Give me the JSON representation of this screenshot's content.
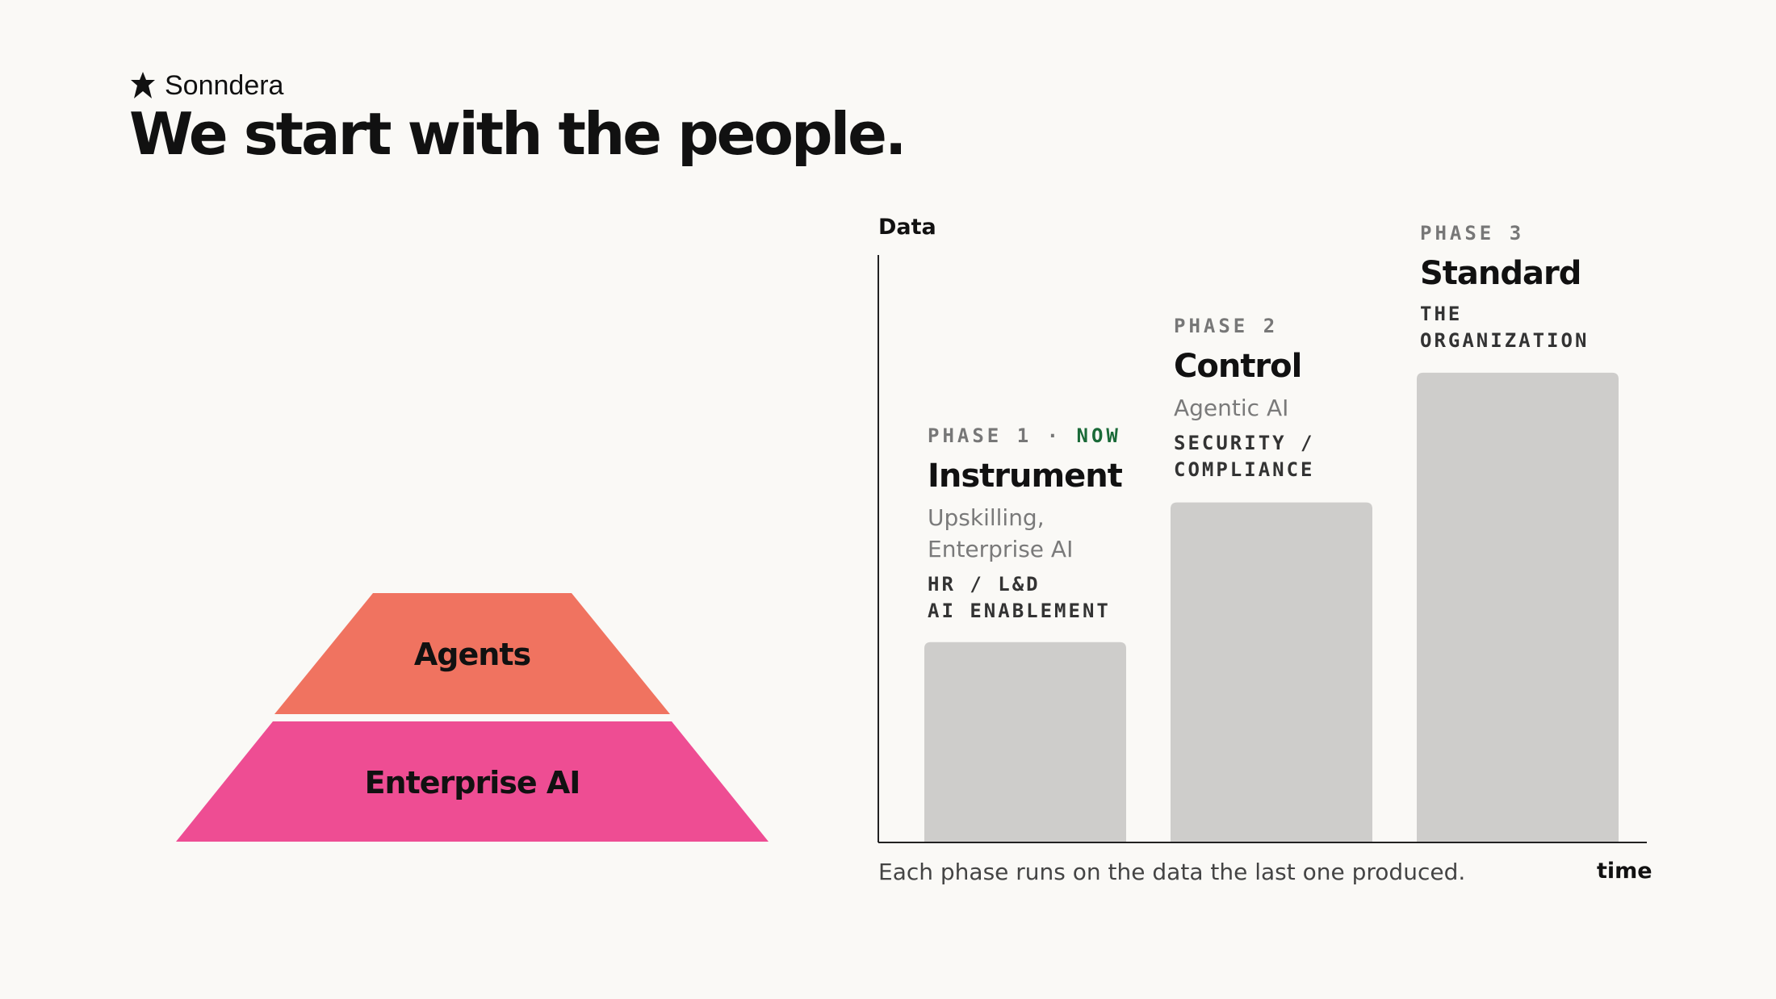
{
  "brand": {
    "name": "Sonndera",
    "icon": "asterisk-figure-icon"
  },
  "title": "We start with the people.",
  "pyramid": {
    "layers": [
      {
        "label": "Agents",
        "color": "#f07360"
      },
      {
        "label": "Enterprise AI",
        "color": "#ee4d93"
      }
    ]
  },
  "chart": {
    "y_axis_label": "Data",
    "x_axis_label": "time",
    "caption": "Each phase runs on the data the last one produced.",
    "bar_color": "#cecdcb",
    "now_color": "#1a6a38"
  },
  "chart_data": {
    "type": "bar",
    "categories": [
      "Instrument",
      "Control",
      "Standard"
    ],
    "values": [
      1,
      1.7,
      2.35
    ],
    "ylim": [
      0,
      2.94
    ],
    "ylabel": "Data",
    "xlabel": "time",
    "grid": false
  },
  "phases": [
    {
      "label": "PHASE 1",
      "separator": " · ",
      "status": "NOW",
      "name": "Instrument",
      "subtitle_lines": [
        "Upskilling,",
        "Enterprise AI"
      ],
      "owner_lines": [
        "HR / L&D",
        "AI ENABLEMENT"
      ]
    },
    {
      "label": "PHASE 2",
      "name": "Control",
      "subtitle_lines": [
        "Agentic AI"
      ],
      "owner_lines": [
        "SECURITY /",
        "COMPLIANCE"
      ]
    },
    {
      "label": "PHASE 3",
      "name": "Standard",
      "owner_lines": [
        "THE",
        "ORGANIZATION"
      ]
    }
  ]
}
